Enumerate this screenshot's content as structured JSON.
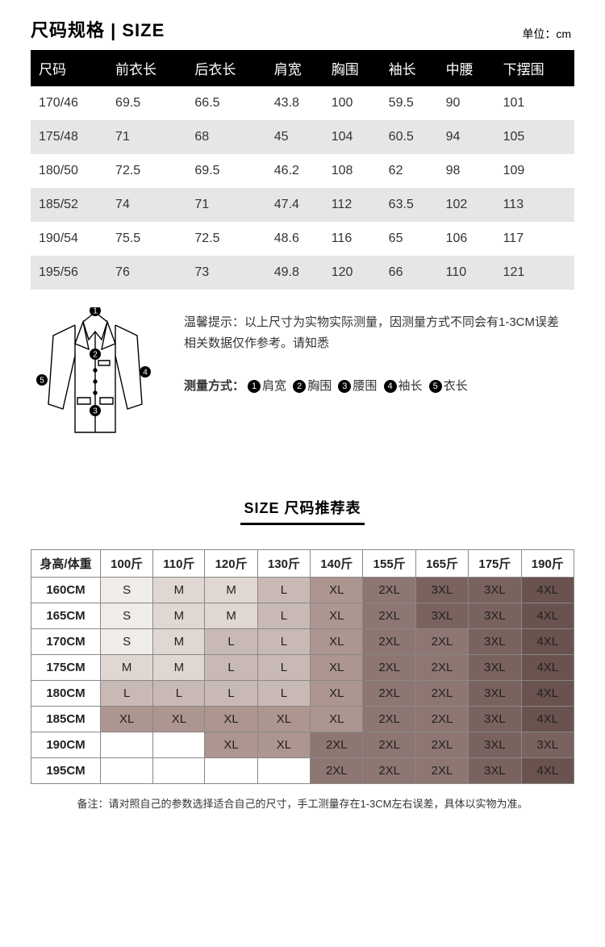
{
  "header": {
    "title": "尺码规格 | SIZE",
    "unit": "单位：cm"
  },
  "size_table": {
    "columns": [
      "尺码",
      "前衣长",
      "后衣长",
      "肩宽",
      "胸围",
      "袖长",
      "中腰",
      "下摆围"
    ],
    "rows": [
      [
        "170/46",
        "69.5",
        "66.5",
        "43.8",
        "100",
        "59.5",
        "90",
        "101"
      ],
      [
        "175/48",
        "71",
        "68",
        "45",
        "104",
        "60.5",
        "94",
        "105"
      ],
      [
        "180/50",
        "72.5",
        "69.5",
        "46.2",
        "108",
        "62",
        "98",
        "109"
      ],
      [
        "185/52",
        "74",
        "71",
        "47.4",
        "112",
        "63.5",
        "102",
        "113"
      ],
      [
        "190/54",
        "75.5",
        "72.5",
        "48.6",
        "116",
        "65",
        "106",
        "117"
      ],
      [
        "195/56",
        "76",
        "73",
        "49.8",
        "120",
        "66",
        "110",
        "121"
      ]
    ]
  },
  "note": {
    "warm_tip": "温馨提示：以上尺寸为实物实际测量，因测量方式不同会有1-3CM误差\n相关数据仅作参考。请知悉",
    "measure_label": "测量方式：",
    "measure_items": [
      "肩宽",
      "胸围",
      "腰围",
      "袖长",
      "衣长"
    ]
  },
  "rec": {
    "title": "SIZE 尺码推荐表",
    "corner": "身高/体重",
    "weights": [
      "100斤",
      "110斤",
      "120斤",
      "130斤",
      "140斤",
      "155斤",
      "165斤",
      "175斤",
      "190斤"
    ],
    "heights": [
      "160CM",
      "165CM",
      "170CM",
      "175CM",
      "180CM",
      "185CM",
      "190CM",
      "195CM"
    ],
    "cells": [
      [
        "S",
        "M",
        "M",
        "L",
        "XL",
        "2XL",
        "3XL",
        "3XL",
        "4XL"
      ],
      [
        "S",
        "M",
        "M",
        "L",
        "XL",
        "2XL",
        "3XL",
        "3XL",
        "4XL"
      ],
      [
        "S",
        "M",
        "L",
        "L",
        "XL",
        "2XL",
        "2XL",
        "3XL",
        "4XL"
      ],
      [
        "M",
        "M",
        "L",
        "L",
        "XL",
        "2XL",
        "2XL",
        "3XL",
        "4XL"
      ],
      [
        "L",
        "L",
        "L",
        "L",
        "XL",
        "2XL",
        "2XL",
        "3XL",
        "4XL"
      ],
      [
        "XL",
        "XL",
        "XL",
        "XL",
        "XL",
        "2XL",
        "2XL",
        "3XL",
        "4XL"
      ],
      [
        "",
        "",
        "XL",
        "XL",
        "2XL",
        "2XL",
        "2XL",
        "3XL",
        "3XL"
      ],
      [
        "",
        "",
        "",
        "",
        "2XL",
        "2XL",
        "2XL",
        "3XL",
        "4XL"
      ]
    ],
    "cell_colors": {
      "": "#ffffff",
      "S": "#f0ecea",
      "M": "#e0d6d2",
      "L": "#c9b9b4",
      "XL": "#ad9590",
      "2XL": "#8e7672",
      "3XL": "#7a625e",
      "4XL": "#6a524e"
    },
    "footnote": "备注：请对照自己的参数选择适合自己的尺寸，手工测量存在1-3CM左右误差，具体以实物为准。"
  }
}
